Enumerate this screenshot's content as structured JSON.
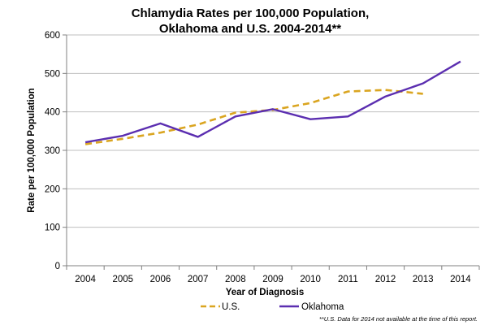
{
  "chart_data": {
    "type": "line",
    "title": [
      "Chlamydia Rates per 100,000 Population,",
      "Oklahoma and U.S. 2004-2014**"
    ],
    "xlabel": "Year of Diagnosis",
    "ylabel": "Rate per 100,000 Population",
    "categories": [
      "2004",
      "2005",
      "2006",
      "2007",
      "2008",
      "2009",
      "2010",
      "2011",
      "2012",
      "2013",
      "2014"
    ],
    "ylim": [
      0,
      600
    ],
    "yticks": [
      "0",
      "100",
      "200",
      "300",
      "400",
      "500",
      "600"
    ],
    "grid": true,
    "legend_position": "bottom",
    "series": [
      {
        "name": "U.S.",
        "color": "#DAA520",
        "style": "dashed",
        "values": [
          316,
          330,
          346,
          367,
          398,
          405,
          423,
          453,
          457,
          447,
          null
        ]
      },
      {
        "name": "Oklahoma",
        "color": "#5B2EB0",
        "style": "solid",
        "values": [
          321,
          338,
          370,
          335,
          388,
          407,
          381,
          388,
          440,
          474,
          531
        ]
      }
    ],
    "footnote": "**U.S. Data for 2014 not available at the time of this report."
  }
}
